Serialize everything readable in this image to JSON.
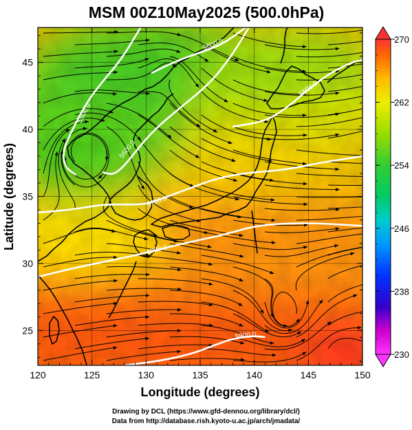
{
  "title": "MSM 00Z10May2025 (500.0hPa)",
  "xlabel": "Longitude (degrees)",
  "ylabel": "Latitude  (degrees)",
  "credits": [
    "Drawing by DCL (https://www.gfd-dennou.org/library/dcl/)",
    "Data from http://database.rish.kyoto-u.ac.jp/arch/jmadata/"
  ],
  "chart_data": {
    "type": "heatmap",
    "x_range": [
      120,
      150
    ],
    "y_range": [
      22.4,
      47.6
    ],
    "x_ticks": [
      120,
      125,
      130,
      135,
      140,
      145,
      150
    ],
    "y_ticks": [
      25,
      30,
      35,
      40,
      45
    ],
    "x_tick_labels": [
      "120",
      "125",
      "130",
      "135",
      "140",
      "145",
      "150"
    ],
    "y_tick_labels": [
      "25",
      "30",
      "35",
      "40",
      "45"
    ],
    "grid": true,
    "colorbar": {
      "min": 230,
      "max": 270,
      "ticks": [
        230,
        238,
        246,
        254,
        262,
        270
      ],
      "tick_labels": [
        "230",
        "238",
        "246",
        "254",
        "262",
        "270"
      ],
      "stops": [
        {
          "value": 230,
          "color": "#ff33ff"
        },
        {
          "value": 233,
          "color": "#cc00cc"
        },
        {
          "value": 236,
          "color": "#3300cc"
        },
        {
          "value": 240,
          "color": "#0033ff"
        },
        {
          "value": 244,
          "color": "#0099ff"
        },
        {
          "value": 247,
          "color": "#00cccc"
        },
        {
          "value": 250,
          "color": "#00cc66"
        },
        {
          "value": 254,
          "color": "#33cc33"
        },
        {
          "value": 258,
          "color": "#99dd00"
        },
        {
          "value": 262,
          "color": "#eeee00"
        },
        {
          "value": 265,
          "color": "#ffbb00"
        },
        {
          "value": 268,
          "color": "#ff6600"
        },
        {
          "value": 270,
          "color": "#ff3333"
        }
      ]
    },
    "contours": [
      {
        "label": "5800.0",
        "points": [
          [
            120,
            29.0
          ],
          [
            123,
            29.6
          ],
          [
            126,
            30.1
          ],
          [
            129,
            30.6
          ],
          [
            131,
            31.0
          ],
          [
            134,
            31.6
          ],
          [
            137,
            32.1
          ],
          [
            140,
            32.8
          ],
          [
            143,
            33.0
          ],
          [
            146,
            33.0
          ],
          [
            150,
            32.8
          ]
        ],
        "label_at": [
          131,
          31.0
        ]
      },
      {
        "label": "5700.0",
        "points": [
          [
            120,
            33.8
          ],
          [
            123,
            34.0
          ],
          [
            126,
            34.4
          ],
          [
            128,
            34.4
          ],
          [
            130,
            34.4
          ],
          [
            132,
            35.0
          ],
          [
            134,
            35.6
          ],
          [
            136,
            36.2
          ],
          [
            138,
            36.6
          ],
          [
            140,
            36.8
          ],
          [
            143,
            37.0
          ],
          [
            146,
            37.5
          ],
          [
            150,
            38.0
          ]
        ],
        "label_at": [
          131,
          34.6
        ]
      },
      {
        "label": "5600.0",
        "points": [
          [
            126,
            36.8
          ],
          [
            127,
            36.6
          ],
          [
            128,
            37.3
          ],
          [
            129,
            38.3
          ],
          [
            130,
            39.3
          ],
          [
            131.5,
            40.5
          ],
          [
            133,
            41.5
          ],
          [
            136,
            43.5
          ],
          [
            138,
            45.6
          ],
          [
            139.5,
            47.6
          ]
        ],
        "label_at": [
          128.3,
          38.5
        ]
      },
      {
        "label": "5600.0",
        "points": [
          [
            130.5,
            44.2
          ],
          [
            132.5,
            45.0
          ],
          [
            134.5,
            45.6
          ],
          [
            137,
            46.3
          ],
          [
            139.2,
            47.6
          ]
        ],
        "label_at": [
          136.2,
          46.3
        ]
      },
      {
        "label": "5500.0",
        "points": [
          [
            123.5,
            36.6
          ],
          [
            122.5,
            37.2
          ],
          [
            122.3,
            38.4
          ],
          [
            123.2,
            40.0
          ],
          [
            124.5,
            42.0
          ],
          [
            126.0,
            43.6
          ],
          [
            127.7,
            45.2
          ],
          [
            129.5,
            47.6
          ]
        ],
        "label_at": [
          124.3,
          41.2
        ]
      },
      {
        "label": "5600.0",
        "points": [
          [
            138,
            40.2
          ],
          [
            141,
            40.6
          ],
          [
            143,
            41.6
          ],
          [
            145,
            43.0
          ],
          [
            147,
            44.2
          ],
          [
            149,
            45.0
          ],
          [
            150,
            45.2
          ]
        ],
        "label_at": [
          145.0,
          43.0
        ]
      },
      {
        "label": "5900.0",
        "points": [
          [
            128,
            22.4
          ],
          [
            131,
            22.7
          ],
          [
            134,
            23.2
          ],
          [
            136,
            23.8
          ],
          [
            138,
            24.4
          ],
          [
            140,
            24.6
          ],
          [
            141,
            24.5
          ]
        ],
        "label_at": [
          139.2,
          24.6
        ]
      }
    ]
  }
}
